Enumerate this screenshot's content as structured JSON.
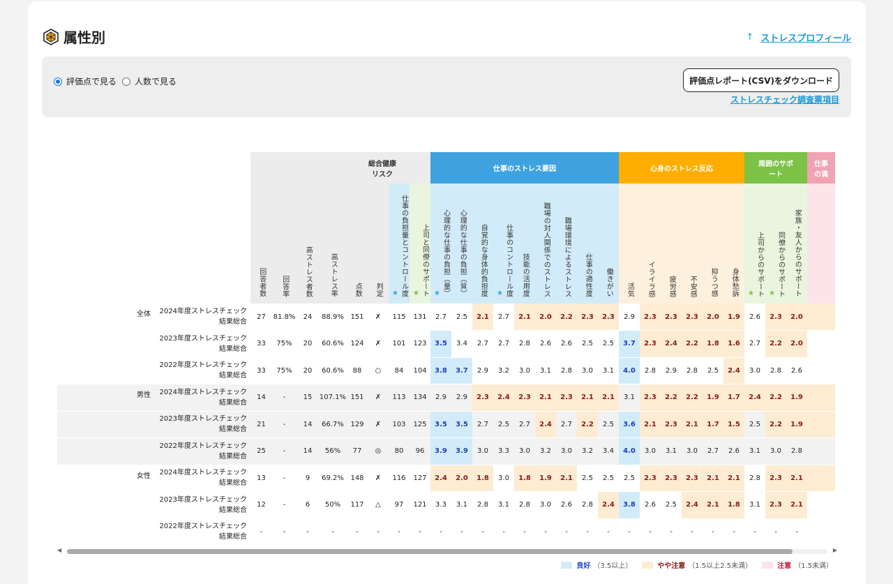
{
  "page": {
    "title": "属性別",
    "profile_link": "ストレスプロフィール",
    "profile_arrow": "↑"
  },
  "controls": {
    "radio_score": "評価点で見る",
    "radio_count": "人数で見る",
    "download_button": "評価点レポート(CSV)をダウンロード",
    "survey_link": "ストレスチェック調査票項目"
  },
  "section": {
    "title": "性別"
  },
  "table": {
    "groups": {
      "overall": "総合健康\nリスク",
      "stress_factors": "仕事のストレス要因",
      "stress_reactions": "心身のストレス反応",
      "support": "周囲のサポ\nート",
      "next": "仕事\nの満"
    },
    "columns": {
      "respondents": "回答者数",
      "response_rate": "回答率",
      "high_stress_count": "高ストレス者数",
      "high_stress_rate": "高ストレス率",
      "score": "点数",
      "judgment": "判定",
      "c_load_control": "仕事の負担量とコントロール度",
      "c_boss_peer": "上司と同僚のサポート",
      "f_quant": "心理的な仕事の負担（量）",
      "f_qual": "心理的な仕事の負担（質）",
      "f_physical": "自覚的な身体的負担度",
      "f_control": "仕事のコントロール度",
      "f_skill": "技能の活用度",
      "f_interpersonal": "職場の対人関係でのストレス",
      "f_environment": "職場環境によるストレス",
      "f_fitness": "仕事の適性度",
      "f_reward": "働きがい",
      "r_vigor": "活気",
      "r_irritation": "イライラ感",
      "r_fatigue": "疲労感",
      "r_anxiety": "不安感",
      "r_depression": "抑うつ感",
      "r_somatic": "身体愁訴",
      "s_boss": "上司からのサポート",
      "s_peer": "同僚からのサポート",
      "s_family": "家族・友人からのサポート"
    },
    "groups_rows": [
      {
        "label": "全体",
        "rows": [
          {
            "year": "2024年度ストレスチェック",
            "sub": "結果総合",
            "v": [
              "27",
              "81.8%",
              "24",
              "88.9%",
              "151",
              "✗",
              "115",
              "131",
              "2.7",
              "2.5",
              "2.1",
              "2.7",
              "2.1",
              "2.0",
              "2.2",
              "2.3",
              "2.3",
              "2.9",
              "2.3",
              "2.3",
              "2.3",
              "2.0",
              "1.9",
              "2.6",
              "2.3",
              "2.0"
            ]
          },
          {
            "year": "2023年度ストレスチェック",
            "sub": "結果総合",
            "v": [
              "33",
              "75%",
              "20",
              "60.6%",
              "124",
              "✗",
              "101",
              "123",
              "3.5",
              "3.4",
              "2.7",
              "2.7",
              "2.8",
              "2.6",
              "2.6",
              "2.5",
              "2.5",
              "3.7",
              "2.3",
              "2.4",
              "2.2",
              "1.8",
              "1.6",
              "2.7",
              "2.2",
              "2.0"
            ]
          },
          {
            "year": "2022年度ストレスチェック",
            "sub": "結果総合",
            "v": [
              "33",
              "75%",
              "20",
              "60.6%",
              "88",
              "○",
              "84",
              "104",
              "3.8",
              "3.7",
              "2.9",
              "3.2",
              "3.0",
              "3.1",
              "2.8",
              "3.0",
              "3.1",
              "4.0",
              "2.8",
              "2.9",
              "2.8",
              "2.5",
              "2.4",
              "3.0",
              "2.8",
              "2.6"
            ]
          }
        ]
      },
      {
        "label": "男性",
        "rows": [
          {
            "year": "2024年度ストレスチェック",
            "sub": "結果総合",
            "v": [
              "14",
              "-",
              "15",
              "107.1%",
              "151",
              "✗",
              "113",
              "134",
              "2.9",
              "2.9",
              "2.3",
              "2.4",
              "2.3",
              "2.1",
              "2.3",
              "2.1",
              "2.1",
              "3.1",
              "2.3",
              "2.2",
              "2.2",
              "1.9",
              "1.7",
              "2.4",
              "2.2",
              "1.9"
            ]
          },
          {
            "year": "2023年度ストレスチェック",
            "sub": "結果総合",
            "v": [
              "21",
              "-",
              "14",
              "66.7%",
              "129",
              "✗",
              "103",
              "125",
              "3.5",
              "3.5",
              "2.7",
              "2.5",
              "2.7",
              "2.4",
              "2.7",
              "2.2",
              "2.5",
              "3.6",
              "2.1",
              "2.3",
              "2.1",
              "1.7",
              "1.5",
              "2.5",
              "2.2",
              "1.9"
            ]
          },
          {
            "year": "2022年度ストレスチェック",
            "sub": "結果総合",
            "v": [
              "25",
              "-",
              "14",
              "56%",
              "77",
              "◎",
              "80",
              "96",
              "3.9",
              "3.9",
              "3.0",
              "3.3",
              "3.0",
              "3.2",
              "3.0",
              "3.2",
              "3.4",
              "4.0",
              "3.0",
              "3.1",
              "3.0",
              "2.7",
              "2.6",
              "3.1",
              "3.0",
              "2.8"
            ]
          }
        ]
      },
      {
        "label": "女性",
        "rows": [
          {
            "year": "2024年度ストレスチェック",
            "sub": "結果総合",
            "v": [
              "13",
              "-",
              "9",
              "69.2%",
              "148",
              "✗",
              "116",
              "127",
              "2.4",
              "2.0",
              "1.8",
              "3.0",
              "1.8",
              "1.9",
              "2.1",
              "2.5",
              "2.5",
              "2.5",
              "2.3",
              "2.3",
              "2.3",
              "2.1",
              "2.1",
              "2.8",
              "2.3",
              "2.1"
            ]
          },
          {
            "year": "2023年度ストレスチェック",
            "sub": "結果総合",
            "v": [
              "12",
              "-",
              "6",
              "50%",
              "117",
              "△",
              "97",
              "121",
              "3.3",
              "3.1",
              "2.8",
              "3.1",
              "2.8",
              "3.0",
              "2.6",
              "2.8",
              "2.4",
              "3.8",
              "2.6",
              "2.5",
              "2.4",
              "2.1",
              "1.8",
              "3.1",
              "2.3",
              "2.1"
            ]
          },
          {
            "year": "2022年度ストレスチェック",
            "sub": "結果総合",
            "v": [
              "-",
              "-",
              "-",
              "-",
              "-",
              "-",
              "-",
              "-",
              "-",
              "-",
              "-",
              "-",
              "-",
              "-",
              "-",
              "-",
              "-",
              "-",
              "-",
              "-",
              "-",
              "-",
              "-",
              "-",
              "-",
              "-"
            ]
          }
        ]
      }
    ],
    "highlight": [
      [
        "",
        "",
        "",
        "",
        "",
        "",
        "",
        "",
        "",
        "",
        "y",
        "",
        "y",
        "y",
        "y",
        "y",
        "y",
        "",
        "y",
        "y",
        "y",
        "y",
        "y",
        "",
        "y",
        "y"
      ],
      [
        "",
        "",
        "",
        "",
        "",
        "",
        "",
        "",
        "g",
        "",
        "",
        "",
        "",
        "",
        "",
        "",
        "",
        "g",
        "y",
        "y",
        "y",
        "y",
        "y",
        "",
        "y",
        "y"
      ],
      [
        "",
        "",
        "",
        "",
        "",
        "",
        "",
        "",
        "g",
        "g",
        "",
        "",
        "",
        "",
        "",
        "",
        "",
        "g",
        "",
        "",
        "",
        "",
        "y",
        "",
        "",
        ""
      ],
      [
        "",
        "",
        "",
        "",
        "",
        "",
        "",
        "",
        "",
        "",
        "y",
        "y",
        "y",
        "y",
        "y",
        "y",
        "y",
        "",
        "y",
        "y",
        "y",
        "y",
        "y",
        "y",
        "y",
        "y"
      ],
      [
        "",
        "",
        "",
        "",
        "",
        "",
        "",
        "",
        "g",
        "g",
        "",
        "",
        "",
        "y",
        "",
        "y",
        "",
        "g",
        "y",
        "y",
        "y",
        "y",
        "y",
        "",
        "y",
        "y"
      ],
      [
        "",
        "",
        "",
        "",
        "",
        "",
        "",
        "",
        "g",
        "g",
        "",
        "",
        "",
        "",
        "",
        "",
        "",
        "g",
        "",
        "",
        "",
        "",
        "",
        "",
        "",
        ""
      ],
      [
        "",
        "",
        "",
        "",
        "",
        "",
        "",
        "",
        "y",
        "y",
        "y",
        "",
        "y",
        "y",
        "y",
        "",
        "",
        "",
        "y",
        "y",
        "y",
        "y",
        "y",
        "",
        "y",
        "y"
      ],
      [
        "",
        "",
        "",
        "",
        "",
        "",
        "",
        "",
        "",
        "",
        "",
        "",
        "",
        "",
        "",
        "",
        "y",
        "g",
        "",
        "",
        "y",
        "y",
        "y",
        "",
        "y",
        "y"
      ],
      [
        "",
        "",
        "",
        "",
        "",
        "",
        "",
        "",
        "",
        "",
        "",
        "",
        "",
        "",
        "",
        "",
        "",
        "",
        "",
        "",
        "",
        "",
        "",
        "",
        "",
        ""
      ]
    ]
  },
  "legend": {
    "good_label": "良好",
    "good_range": "（3.5以上）",
    "caution_label": "やや注意",
    "caution_range": "（1.5以上2.5未満）",
    "warning_label": "注意",
    "warning_range": "（1.5未満）",
    "good_color": "#d2ebf8",
    "caution_color": "#fdecd2",
    "warning_color": "#fce4e9"
  }
}
